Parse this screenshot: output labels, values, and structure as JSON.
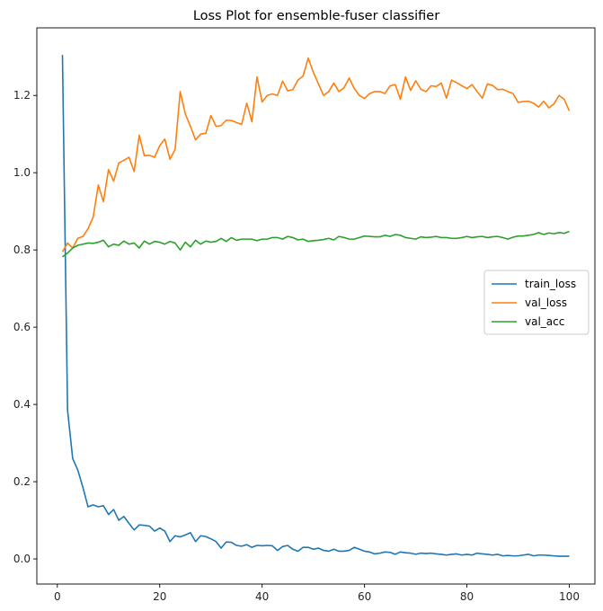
{
  "chart_data": {
    "type": "line",
    "title": "Loss Plot for ensemble-fuser classifier",
    "xlabel": "",
    "ylabel": "",
    "xlim": [
      -4,
      105
    ],
    "ylim": [
      -0.065,
      1.375
    ],
    "xticks": [
      0,
      20,
      40,
      60,
      80,
      100
    ],
    "yticks": [
      0.0,
      0.2,
      0.4,
      0.6,
      0.8,
      1.0,
      1.2
    ],
    "ytick_labels": [
      "0.0",
      "0.2",
      "0.4",
      "0.6",
      "0.8",
      "1.0",
      "1.2"
    ],
    "grid": false,
    "legend_position": "center-right",
    "x": [
      1,
      2,
      3,
      4,
      5,
      6,
      7,
      8,
      9,
      10,
      11,
      12,
      13,
      14,
      15,
      16,
      17,
      18,
      19,
      20,
      21,
      22,
      23,
      24,
      25,
      26,
      27,
      28,
      29,
      30,
      31,
      32,
      33,
      34,
      35,
      36,
      37,
      38,
      39,
      40,
      41,
      42,
      43,
      44,
      45,
      46,
      47,
      48,
      49,
      50,
      51,
      52,
      53,
      54,
      55,
      56,
      57,
      58,
      59,
      60,
      61,
      62,
      63,
      64,
      65,
      66,
      67,
      68,
      69,
      70,
      71,
      72,
      73,
      74,
      75,
      76,
      77,
      78,
      79,
      80,
      81,
      82,
      83,
      84,
      85,
      86,
      87,
      88,
      89,
      90,
      91,
      92,
      93,
      94,
      95,
      96,
      97,
      98,
      99,
      100
    ],
    "series": [
      {
        "name": "train_loss",
        "color": "#1f77b4",
        "values": [
          1.305,
          0.385,
          0.26,
          0.23,
          0.185,
          0.135,
          0.14,
          0.135,
          0.138,
          0.115,
          0.128,
          0.1,
          0.11,
          0.092,
          0.075,
          0.088,
          0.087,
          0.085,
          0.072,
          0.08,
          0.072,
          0.045,
          0.06,
          0.057,
          0.062,
          0.068,
          0.045,
          0.06,
          0.058,
          0.052,
          0.045,
          0.028,
          0.044,
          0.043,
          0.035,
          0.033,
          0.037,
          0.03,
          0.035,
          0.034,
          0.035,
          0.034,
          0.022,
          0.032,
          0.035,
          0.025,
          0.02,
          0.03,
          0.03,
          0.025,
          0.028,
          0.022,
          0.02,
          0.025,
          0.02,
          0.02,
          0.022,
          0.03,
          0.025,
          0.02,
          0.018,
          0.013,
          0.015,
          0.018,
          0.017,
          0.012,
          0.018,
          0.016,
          0.015,
          0.012,
          0.015,
          0.014,
          0.015,
          0.013,
          0.012,
          0.01,
          0.012,
          0.013,
          0.01,
          0.012,
          0.01,
          0.015,
          0.013,
          0.012,
          0.01,
          0.012,
          0.008,
          0.009,
          0.008,
          0.008,
          0.01,
          0.012,
          0.008,
          0.01,
          0.01,
          0.009,
          0.008,
          0.007,
          0.007,
          0.007
        ]
      },
      {
        "name": "val_loss",
        "color": "#ff7f0e",
        "values": [
          0.795,
          0.818,
          0.805,
          0.83,
          0.835,
          0.855,
          0.885,
          0.968,
          0.925,
          1.008,
          0.978,
          1.025,
          1.032,
          1.04,
          1.003,
          1.097,
          1.044,
          1.045,
          1.04,
          1.07,
          1.087,
          1.035,
          1.06,
          1.21,
          1.152,
          1.12,
          1.085,
          1.1,
          1.102,
          1.148,
          1.12,
          1.122,
          1.136,
          1.135,
          1.13,
          1.125,
          1.18,
          1.132,
          1.248,
          1.183,
          1.2,
          1.204,
          1.2,
          1.237,
          1.212,
          1.215,
          1.24,
          1.25,
          1.297,
          1.26,
          1.23,
          1.2,
          1.21,
          1.232,
          1.21,
          1.22,
          1.245,
          1.218,
          1.2,
          1.192,
          1.205,
          1.21,
          1.21,
          1.205,
          1.225,
          1.228,
          1.19,
          1.248,
          1.213,
          1.238,
          1.216,
          1.21,
          1.225,
          1.223,
          1.232,
          1.193,
          1.24,
          1.233,
          1.225,
          1.218,
          1.228,
          1.21,
          1.193,
          1.23,
          1.226,
          1.215,
          1.216,
          1.21,
          1.205,
          1.182,
          1.184,
          1.185,
          1.18,
          1.17,
          1.185,
          1.168,
          1.178,
          1.2,
          1.19,
          1.16
        ]
      },
      {
        "name": "val_acc",
        "color": "#2ca02c",
        "values": [
          0.782,
          0.792,
          0.805,
          0.812,
          0.815,
          0.818,
          0.817,
          0.82,
          0.825,
          0.808,
          0.815,
          0.812,
          0.823,
          0.815,
          0.818,
          0.805,
          0.823,
          0.815,
          0.822,
          0.82,
          0.815,
          0.822,
          0.818,
          0.8,
          0.82,
          0.808,
          0.825,
          0.815,
          0.823,
          0.82,
          0.822,
          0.83,
          0.822,
          0.832,
          0.825,
          0.828,
          0.828,
          0.828,
          0.824,
          0.828,
          0.828,
          0.832,
          0.832,
          0.828,
          0.835,
          0.832,
          0.826,
          0.828,
          0.822,
          0.824,
          0.825,
          0.827,
          0.83,
          0.826,
          0.835,
          0.832,
          0.828,
          0.828,
          0.832,
          0.836,
          0.835,
          0.834,
          0.834,
          0.838,
          0.835,
          0.84,
          0.838,
          0.832,
          0.83,
          0.828,
          0.834,
          0.832,
          0.833,
          0.835,
          0.832,
          0.832,
          0.83,
          0.83,
          0.832,
          0.835,
          0.832,
          0.834,
          0.835,
          0.832,
          0.834,
          0.835,
          0.832,
          0.828,
          0.833,
          0.836,
          0.836,
          0.838,
          0.84,
          0.845,
          0.84,
          0.844,
          0.842,
          0.845,
          0.843,
          0.848
        ]
      }
    ]
  }
}
